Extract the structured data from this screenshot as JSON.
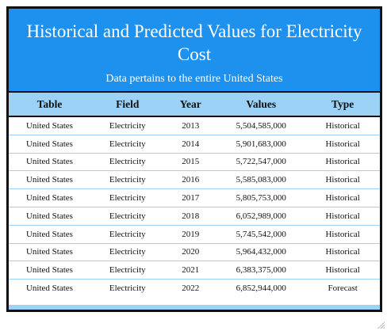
{
  "header": {
    "title": "Historical and Predicted Values for Electricity Cost",
    "subtitle": "Data pertains to the entire United States"
  },
  "table": {
    "columns": [
      "Table",
      "Field",
      "Year",
      "Values",
      "Type"
    ],
    "rows": [
      [
        "United States",
        "Electricity",
        "2013",
        "5,504,585,000",
        "Historical"
      ],
      [
        "United States",
        "Electricity",
        "2014",
        "5,901,683,000",
        "Historical"
      ],
      [
        "United States",
        "Electricity",
        "2015",
        "5,722,547,000",
        "Historical"
      ],
      [
        "United States",
        "Electricity",
        "2016",
        "5,585,083,000",
        "Historical"
      ],
      [
        "United States",
        "Electricity",
        "2017",
        "5,805,753,000",
        "Historical"
      ],
      [
        "United States",
        "Electricity",
        "2018",
        "6,052,989,000",
        "Historical"
      ],
      [
        "United States",
        "Electricity",
        "2019",
        "5,745,542,000",
        "Historical"
      ],
      [
        "United States",
        "Electricity",
        "2020",
        "5,964,432,000",
        "Historical"
      ],
      [
        "United States",
        "Electricity",
        "2021",
        "6,383,375,000",
        "Historical"
      ],
      [
        "United States",
        "Electricity",
        "2022",
        "6,852,944,000",
        "Forecast"
      ]
    ]
  },
  "colors": {
    "header_bg": "#1e90ee",
    "band_bg": "#9dd2f7",
    "border": "#111111"
  }
}
